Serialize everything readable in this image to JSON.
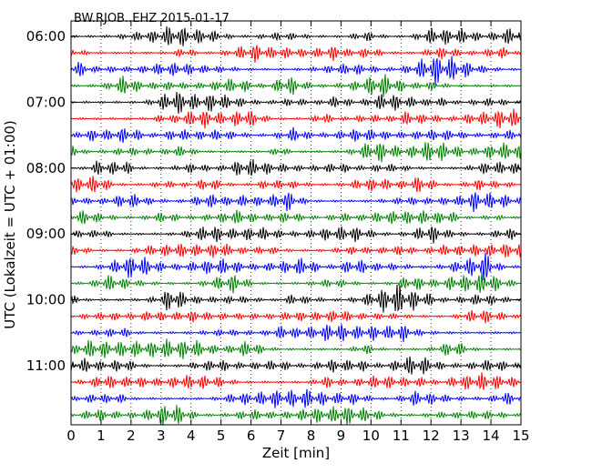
{
  "chart_data": {
    "type": "line",
    "title": "BW.RJOB..EHZ 2015-01-17",
    "xlabel": "Zeit  [min]",
    "ylabel": "UTC (Lokalzeit = UTC + 01:00)",
    "xlim": [
      0,
      15
    ],
    "x_ticks": [
      "0",
      "1",
      "2",
      "3",
      "4",
      "5",
      "6",
      "7",
      "8",
      "9",
      "10",
      "11",
      "12",
      "13",
      "14",
      "15"
    ],
    "y_ticks": [
      "06:00",
      "07:00",
      "08:00",
      "09:00",
      "10:00",
      "11:00"
    ],
    "grid": "vertical dotted lines at each minute",
    "trace_interval_minutes": 15,
    "trace_start": "06:00",
    "trace_count": 24,
    "colors": [
      "#000000",
      "#ff0000",
      "#0000ff",
      "#008000"
    ],
    "units_note": "",
    "series": []
  }
}
